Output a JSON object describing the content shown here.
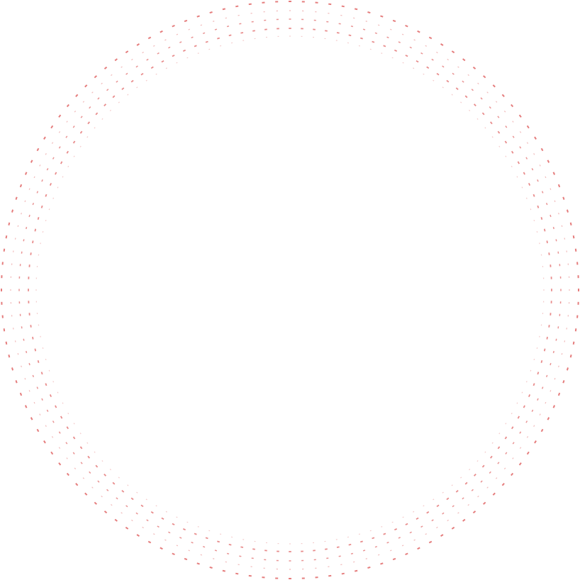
{
  "pattern": {
    "type": "concentric-dotted-rings",
    "dot_color": "#e06666",
    "ring_count": 5,
    "dots_per_ring": 136,
    "ring_opacities": [
      0.85,
      0.45,
      0.7,
      0.75,
      0.35
    ]
  }
}
